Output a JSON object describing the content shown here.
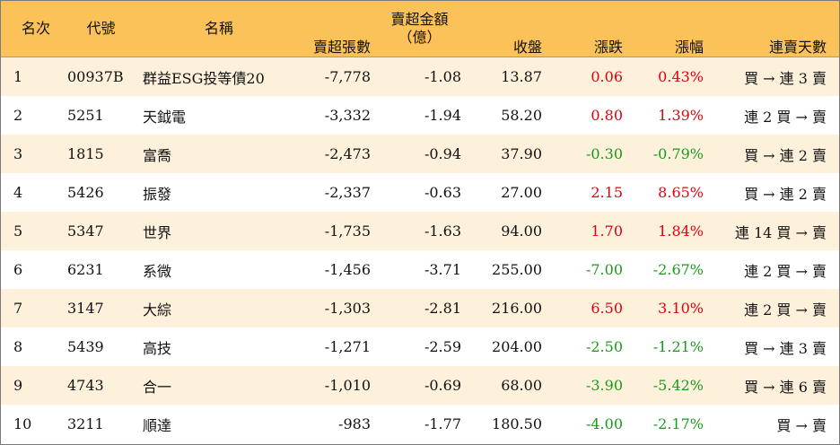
{
  "colors": {
    "header_bg": "#fbc25a",
    "odd_row_bg": "#fdf1dc",
    "even_row_bg": "#ffffff",
    "up": "#e0000f",
    "down": "#1a9a1a",
    "border": "#7a7a7a"
  },
  "headers": {
    "rank": "名次",
    "code": "代號",
    "name": "名稱",
    "volume": "賣超張數",
    "amount_line1": "賣超金額",
    "amount_line2": "（億）",
    "close": "收盤",
    "change": "漲跌",
    "pct": "漲幅",
    "days": "連賣天數"
  },
  "rows": [
    {
      "rank": "1",
      "code": "00937B",
      "name": "群益ESG投等債20",
      "volume": "-7,778",
      "amount": "-1.08",
      "close": "13.87",
      "change": "0.06",
      "pct": "0.43%",
      "direction": "up",
      "days": "買 → 連 3 賣"
    },
    {
      "rank": "2",
      "code": "5251",
      "name": "天鉞電",
      "volume": "-3,332",
      "amount": "-1.94",
      "close": "58.20",
      "change": "0.80",
      "pct": "1.39%",
      "direction": "up",
      "days": "連 2 買 → 賣"
    },
    {
      "rank": "3",
      "code": "1815",
      "name": "富喬",
      "volume": "-2,473",
      "amount": "-0.94",
      "close": "37.90",
      "change": "-0.30",
      "pct": "-0.79%",
      "direction": "down",
      "days": "買 → 連 2 賣"
    },
    {
      "rank": "4",
      "code": "5426",
      "name": "振發",
      "volume": "-2,337",
      "amount": "-0.63",
      "close": "27.00",
      "change": "2.15",
      "pct": "8.65%",
      "direction": "up",
      "days": "買 → 連 2 賣"
    },
    {
      "rank": "5",
      "code": "5347",
      "name": "世界",
      "volume": "-1,735",
      "amount": "-1.63",
      "close": "94.00",
      "change": "1.70",
      "pct": "1.84%",
      "direction": "up",
      "days": "連 14 買 → 賣"
    },
    {
      "rank": "6",
      "code": "6231",
      "name": "系微",
      "volume": "-1,456",
      "amount": "-3.71",
      "close": "255.00",
      "change": "-7.00",
      "pct": "-2.67%",
      "direction": "down",
      "days": "連 2 買 → 賣"
    },
    {
      "rank": "7",
      "code": "3147",
      "name": "大綜",
      "volume": "-1,303",
      "amount": "-2.81",
      "close": "216.00",
      "change": "6.50",
      "pct": "3.10%",
      "direction": "up",
      "days": "連 2 買 → 賣"
    },
    {
      "rank": "8",
      "code": "5439",
      "name": "高技",
      "volume": "-1,271",
      "amount": "-2.59",
      "close": "204.00",
      "change": "-2.50",
      "pct": "-1.21%",
      "direction": "down",
      "days": "買 → 連 3 賣"
    },
    {
      "rank": "9",
      "code": "4743",
      "name": "合一",
      "volume": "-1,010",
      "amount": "-0.69",
      "close": "68.00",
      "change": "-3.90",
      "pct": "-5.42%",
      "direction": "down",
      "days": "買 → 連 6 賣"
    },
    {
      "rank": "10",
      "code": "3211",
      "name": "順達",
      "volume": "-983",
      "amount": "-1.77",
      "close": "180.50",
      "change": "-4.00",
      "pct": "-2.17%",
      "direction": "down",
      "days": "買 → 賣"
    }
  ]
}
